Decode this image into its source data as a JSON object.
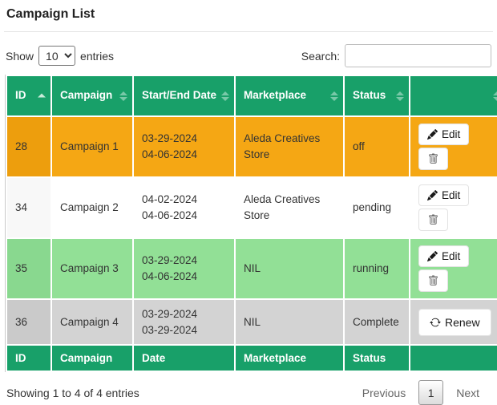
{
  "title": "Campaign List",
  "controls": {
    "show_label": "Show",
    "page_size": "10",
    "entries_label": "entries",
    "search_label": "Search:",
    "search_value": ""
  },
  "table": {
    "headers": [
      {
        "label": "ID",
        "sort": "asc"
      },
      {
        "label": "Campaign",
        "sort": "both"
      },
      {
        "label": "Start/End Date",
        "sort": "both"
      },
      {
        "label": "Marketplace",
        "sort": "both"
      },
      {
        "label": "Status",
        "sort": "both"
      },
      {
        "label": "",
        "sort": "both"
      }
    ],
    "footers": [
      "ID",
      "Campaign",
      "Date",
      "Marketplace",
      "Status",
      ""
    ],
    "action_buttons": {
      "edit": {
        "label": "Edit",
        "icon": "pencil-icon"
      },
      "delete": {
        "label": "",
        "icon": "trash-icon"
      },
      "renew": {
        "label": "Renew",
        "icon": "refresh-icon"
      }
    },
    "rows": [
      {
        "id": "28",
        "campaign": "Campaign 1",
        "start_date": "03-29-2024",
        "end_date": "04-06-2024",
        "marketplace": "Aleda Creatives Store",
        "status": "off",
        "actions": [
          "edit",
          "delete"
        ],
        "row_color": "#f5a714",
        "id_cell_color": "#ed9e0d"
      },
      {
        "id": "34",
        "campaign": "Campaign 2",
        "start_date": "04-02-2024",
        "end_date": "04-06-2024",
        "marketplace": "Aleda Creatives Store",
        "status": "pending",
        "actions": [
          "edit",
          "delete"
        ],
        "row_color": "#ffffff",
        "id_cell_color": "#f8f8f8"
      },
      {
        "id": "35",
        "campaign": "Campaign 3",
        "start_date": "03-29-2024",
        "end_date": "04-06-2024",
        "marketplace": "NIL",
        "status": "running",
        "actions": [
          "edit",
          "delete"
        ],
        "row_color": "#92e096",
        "id_cell_color": "#89d88f"
      },
      {
        "id": "36",
        "campaign": "Campaign 4",
        "start_date": "03-29-2024",
        "end_date": "03-29-2024",
        "marketplace": "NIL",
        "status": "Complete",
        "actions": [
          "renew"
        ],
        "row_color": "#d3d3d3",
        "id_cell_color": "#cacaca"
      }
    ]
  },
  "footer_info": "Showing 1 to 4 of 4 entries",
  "pagination": {
    "previous": "Previous",
    "current": "1",
    "next": "Next"
  },
  "colors": {
    "header_bg": "#18a069",
    "header_text": "#ffffff",
    "sort_arrow_active": "#c9ecd9"
  }
}
